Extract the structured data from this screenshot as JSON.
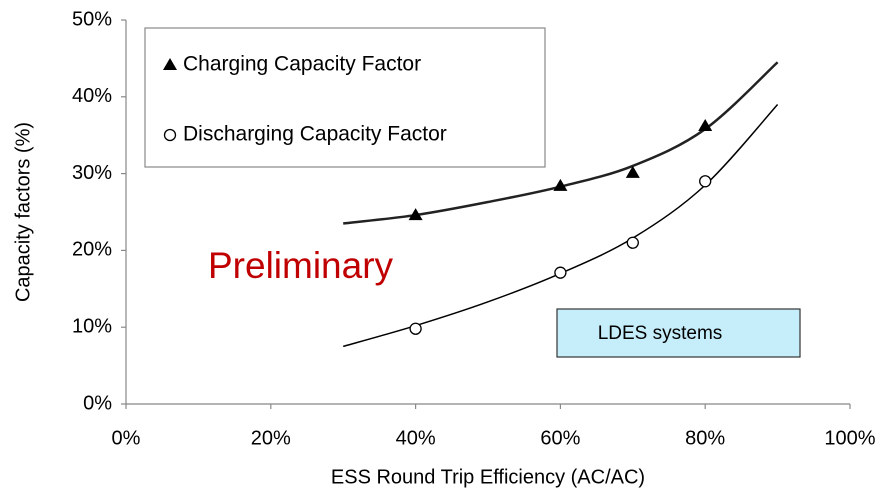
{
  "chart_data": {
    "type": "scatter",
    "xlabel": "ESS Round Trip Efficiency (AC/AC)",
    "ylabel": "Capacity factors (%)",
    "annotations": [
      "Preliminary",
      "LDES systems"
    ],
    "xlim": [
      0,
      100
    ],
    "xticks": [
      {
        "value": 0,
        "label": "0%"
      },
      {
        "value": 20,
        "label": "20%"
      },
      {
        "value": 40,
        "label": "40%"
      },
      {
        "value": 60,
        "label": "60%"
      },
      {
        "value": 80,
        "label": "80%"
      },
      {
        "value": 100,
        "label": "100%"
      }
    ],
    "ylim": [
      0,
      50
    ],
    "yticks": [
      {
        "value": 0,
        "label": "0%"
      },
      {
        "value": 10,
        "label": "10%"
      },
      {
        "value": 20,
        "label": "20%"
      },
      {
        "value": 30,
        "label": "30%"
      },
      {
        "value": 40,
        "label": "40%"
      },
      {
        "value": 50,
        "label": "50%"
      }
    ],
    "grid": false,
    "series": [
      {
        "name": "Charging Capacity Factor",
        "color": "#000000",
        "marker": "triangle",
        "x": [
          40,
          60,
          70,
          80
        ],
        "values": [
          24.6,
          28.4,
          30.1,
          36.2
        ]
      },
      {
        "name": "Discharging Capacity Factor",
        "color": "#000000",
        "marker": "circle",
        "x": [
          40,
          60,
          70,
          80
        ],
        "values": [
          9.8,
          17.1,
          21.0,
          29.0
        ]
      }
    ],
    "trendlines": [
      {
        "color": "#222222",
        "width": 2.5,
        "x": [
          30,
          40,
          50,
          60,
          70,
          80,
          90
        ],
        "values": [
          23.5,
          24.6,
          26.3,
          28.3,
          31.0,
          35.8,
          44.5
        ]
      },
      {
        "color": "#000000",
        "width": 1.5,
        "x": [
          30,
          40,
          50,
          60,
          70,
          80,
          90
        ],
        "values": [
          7.5,
          10.2,
          13.3,
          17.0,
          21.6,
          28.5,
          39.0
        ]
      }
    ]
  }
}
